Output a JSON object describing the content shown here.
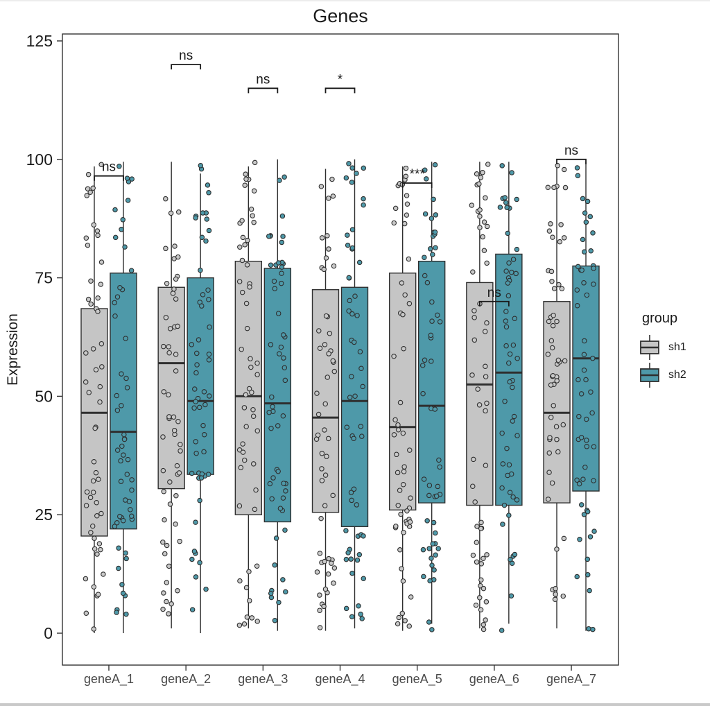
{
  "chart_data": {
    "type": "boxplot",
    "title": "Genes",
    "ylabel": "Expression",
    "xlabel": "",
    "ylim": [
      0,
      125
    ],
    "yticks": [
      0,
      25,
      50,
      75,
      100,
      125
    ],
    "grid": false,
    "categories": [
      "geneA_1",
      "geneA_2",
      "geneA_3",
      "geneA_4",
      "geneA_5",
      "geneA_6",
      "geneA_7"
    ],
    "legend": {
      "title": "group",
      "position": "right"
    },
    "groups": [
      {
        "name": "sh1",
        "color": "#C5C5C5",
        "point_fill": "#C9C9C9"
      },
      {
        "name": "sh2",
        "color": "#4E99A9",
        "point_fill": "#4E99A9"
      }
    ],
    "series": [
      {
        "name": "sh1",
        "stats": [
          {
            "lo": 0,
            "q1": 20.5,
            "med": 46.5,
            "q3": 68.5,
            "hi": 98.5
          },
          {
            "lo": 1,
            "q1": 30.5,
            "med": 57,
            "q3": 73,
            "hi": 99.5
          },
          {
            "lo": 1,
            "q1": 25,
            "med": 50,
            "q3": 78.5,
            "hi": 98.5
          },
          {
            "lo": 0.5,
            "q1": 25.5,
            "med": 45.5,
            "q3": 72.5,
            "hi": 98
          },
          {
            "lo": 0.5,
            "q1": 26,
            "med": 43.5,
            "q3": 76,
            "hi": 98.5
          },
          {
            "lo": 1,
            "q1": 27,
            "med": 52.5,
            "q3": 74,
            "hi": 99.5
          },
          {
            "lo": 1,
            "q1": 27.5,
            "med": 46.5,
            "q3": 70,
            "hi": 99
          }
        ]
      },
      {
        "name": "sh2",
        "stats": [
          {
            "lo": 0,
            "q1": 22,
            "med": 42.5,
            "q3": 76,
            "hi": 99.5
          },
          {
            "lo": 0,
            "q1": 33.5,
            "med": 49,
            "q3": 75,
            "hi": 97
          },
          {
            "lo": 0.5,
            "q1": 23.5,
            "med": 48.5,
            "q3": 77,
            "hi": 100
          },
          {
            "lo": 1,
            "q1": 22.5,
            "med": 49,
            "q3": 73,
            "hi": 100
          },
          {
            "lo": 2,
            "q1": 27.5,
            "med": 48,
            "q3": 78.5,
            "hi": 99.5
          },
          {
            "lo": 2,
            "q1": 27,
            "med": 55,
            "q3": 80,
            "hi": 99.5
          },
          {
            "lo": 0.5,
            "q1": 30,
            "med": 58,
            "q3": 77.5,
            "hi": 99.5
          }
        ]
      }
    ],
    "comparisons": [
      {
        "category": "geneA_1",
        "label": "ns",
        "bracket_y": 96.5
      },
      {
        "category": "geneA_2",
        "label": "ns",
        "bracket_y": 120
      },
      {
        "category": "geneA_3",
        "label": "ns",
        "bracket_y": 115
      },
      {
        "category": "geneA_4",
        "label": "*",
        "bracket_y": 115
      },
      {
        "category": "geneA_5",
        "label": "***",
        "bracket_y": 95
      },
      {
        "category": "geneA_6",
        "label": "ns",
        "bracket_y": 70
      },
      {
        "category": "geneA_7",
        "label": "ns",
        "bracket_y": 100
      }
    ],
    "jitter_points": {
      "per_box": 55,
      "value_range": [
        0.5,
        99.5
      ],
      "seed": 42
    },
    "style": {
      "panel_border": "#333333",
      "box_stroke": "#2F2F2F",
      "axis_text_y": "#1A1A1A",
      "axis_text_x": "#4A4A4A",
      "annotation_color": "#1A1A1A"
    }
  }
}
